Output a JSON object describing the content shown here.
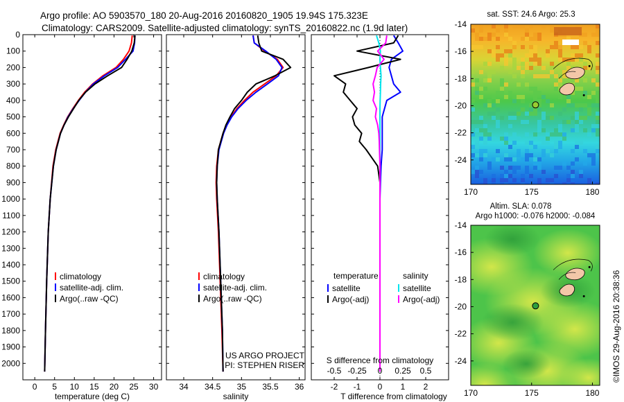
{
  "header": {
    "line1": "Argo profile: AO 5903570_180 20-Aug-2016 20160820_1905 19.94S 175.323E",
    "line2": "Climatology: CARS2009. Satellite-adjusted climatology: synTS_20160822.nc (1.9d later)"
  },
  "colors": {
    "climatology": "#ff0000",
    "satellite": "#0000ff",
    "argo": "#000000",
    "salinity_satellite": "#00e5ee",
    "salinity_argo": "#ff00ff"
  },
  "chart_data": [
    {
      "type": "line",
      "panel": "temperature",
      "xlabel": "temperature (deg C)",
      "xlim": [
        -3,
        32
      ],
      "xticks": [
        0,
        5,
        10,
        15,
        20,
        25,
        30
      ],
      "ylim": [
        2100,
        0
      ],
      "yticks": [
        0,
        100,
        200,
        300,
        400,
        500,
        600,
        700,
        800,
        900,
        1000,
        1100,
        1200,
        1300,
        1400,
        1500,
        1600,
        1700,
        1800,
        1900,
        2000
      ],
      "depth": [
        5,
        50,
        100,
        150,
        200,
        250,
        300,
        350,
        400,
        450,
        500,
        550,
        600,
        700,
        800,
        1000,
        1200,
        1500,
        1800,
        2050
      ],
      "legend": [
        "climatology",
        "satellite-adj. clim.",
        "Argo(..raw -QC)"
      ],
      "series": [
        {
          "name": "climatology",
          "color": "#ff0000",
          "values": [
            24.6,
            24.4,
            23.8,
            22.4,
            20.5,
            17.2,
            14.6,
            12.6,
            11.0,
            9.6,
            8.3,
            7.3,
            6.4,
            5.3,
            4.6,
            3.9,
            3.4,
            3.0,
            2.7,
            2.5
          ]
        },
        {
          "name": "satellite-adj. clim.",
          "color": "#0000ff",
          "values": [
            25.3,
            25.2,
            24.8,
            22.9,
            20.9,
            17.6,
            14.8,
            12.8,
            11.2,
            9.7,
            8.4,
            7.4,
            6.5,
            5.4,
            4.7,
            3.9,
            3.4,
            3.0,
            2.7,
            2.5
          ]
        },
        {
          "name": "Argo(..raw -QC)",
          "color": "#000000",
          "values": [
            25.3,
            25.1,
            24.5,
            23.3,
            21.9,
            18.4,
            15.2,
            12.8,
            11.1,
            9.8,
            8.5,
            7.4,
            6.5,
            5.4,
            4.7,
            3.9,
            3.4,
            3.0,
            2.7,
            2.5
          ]
        }
      ],
      "annotation": null
    },
    {
      "type": "line",
      "panel": "salinity",
      "xlabel": "salinity",
      "xlim": [
        33.7,
        36.1
      ],
      "xticks": [
        34,
        34.5,
        35,
        35.5,
        36
      ],
      "ylim": [
        2100,
        0
      ],
      "depth": [
        5,
        50,
        100,
        150,
        200,
        250,
        300,
        350,
        400,
        450,
        500,
        550,
        600,
        700,
        800,
        900,
        1000,
        1200,
        1500,
        1800,
        2050
      ],
      "legend": [
        "climatology",
        "satellite-adj. clim.",
        "Argo(..raw -QC)"
      ],
      "series": [
        {
          "name": "climatology",
          "color": "#ff0000",
          "values": [
            35.2,
            35.22,
            35.4,
            35.62,
            35.72,
            35.6,
            35.4,
            35.2,
            35.05,
            34.92,
            34.82,
            34.74,
            34.68,
            34.6,
            34.57,
            34.56,
            34.57,
            34.6,
            34.63,
            34.66,
            34.68
          ]
        },
        {
          "name": "satellite-adj. clim.",
          "color": "#0000ff",
          "values": [
            35.2,
            35.22,
            35.42,
            35.6,
            35.7,
            35.64,
            35.45,
            35.25,
            35.08,
            34.94,
            34.83,
            34.75,
            34.69,
            34.61,
            34.58,
            34.57,
            34.58,
            34.61,
            34.64,
            34.67,
            34.68
          ]
        },
        {
          "name": "Argo(..raw -QC)",
          "color": "#000000",
          "values": [
            35.28,
            35.3,
            35.35,
            35.72,
            35.85,
            35.58,
            35.25,
            35.1,
            35.0,
            34.88,
            34.8,
            34.73,
            34.68,
            34.6,
            34.58,
            34.57,
            34.58,
            34.61,
            34.64,
            34.67,
            34.68
          ]
        }
      ],
      "annotation": [
        "US ARGO PROJECT",
        "PI: STEPHEN RISER"
      ]
    },
    {
      "type": "line",
      "panel": "difference",
      "xlabel": "T difference from climatology",
      "xlim": [
        -3,
        3
      ],
      "xticks": [
        -2,
        -1,
        0,
        1,
        2
      ],
      "top_axis_label": "S difference from climatology",
      "top_ticks": [
        "-0.5",
        "-0.25",
        "0",
        "0.25",
        "0.5"
      ],
      "ylim": [
        2100,
        0
      ],
      "depth": [
        5,
        50,
        100,
        150,
        200,
        250,
        300,
        350,
        400,
        450,
        500,
        550,
        600,
        650,
        700,
        800,
        900,
        1000,
        1200,
        1500,
        1800,
        2050
      ],
      "legend_temperature": [
        "temperature",
        "satellite",
        "Argo(-adj)"
      ],
      "legend_salinity": [
        "salinity",
        "satellite",
        "Argo(-adj)"
      ],
      "series": [
        {
          "name": "T satellite",
          "color": "#0000ff",
          "values": [
            0.6,
            0.8,
            1.0,
            0.5,
            0.4,
            0.5,
            0.6,
            0.9,
            0.3,
            0.2,
            0.1,
            0.1,
            0.1,
            0.1,
            0.1,
            0.05,
            0.02,
            0.0,
            0.0,
            0.0,
            0.0,
            0.0
          ]
        },
        {
          "name": "T Argo(-adj)",
          "color": "#000000",
          "values": [
            0.8,
            0.6,
            -1.0,
            0.9,
            -0.5,
            -2.0,
            -1.5,
            -1.6,
            -1.3,
            -1.0,
            -1.2,
            -1.1,
            -0.8,
            -0.9,
            -0.6,
            -0.1,
            0.0,
            0.0,
            0.0,
            0.0,
            0.0,
            0.0
          ]
        },
        {
          "name": "S satellite",
          "color": "#00e5ee",
          "values": [
            -0.15,
            -0.05,
            0.02,
            0.0,
            0.02,
            0.05,
            0.03,
            0.02,
            0.01,
            0.0,
            0.0,
            0.0,
            0.0,
            0.0,
            0.0,
            0.0,
            0.0,
            0.0,
            0.0,
            0.0,
            0.0,
            0.0
          ]
        },
        {
          "name": "S Argo(-adj)",
          "color": "#ff00ff",
          "values": [
            0.3,
            0.25,
            -0.1,
            0.18,
            -0.12,
            -0.2,
            -0.3,
            -0.24,
            -0.3,
            -0.15,
            -0.2,
            -0.1,
            -0.05,
            -0.03,
            -0.02,
            0.0,
            0.0,
            0.0,
            0.0,
            0.0,
            0.0,
            0.0
          ]
        }
      ]
    },
    {
      "type": "heatmap",
      "panel": "sst-map",
      "title": "sat. SST: 24.6  Argo: 25.3",
      "xlim": [
        170,
        180.6
      ],
      "ylim": [
        -25.8,
        -14
      ],
      "xticks": [
        170,
        175,
        180
      ],
      "yticks": [
        -14,
        -16,
        -18,
        -20,
        -22,
        -24
      ],
      "float_position": {
        "lon": 175.323,
        "lat": -19.94
      }
    },
    {
      "type": "heatmap",
      "panel": "sla-map",
      "title": [
        "Altim. SLA: 0.078",
        "Argo h1000: -0.076 h2000: -0.084"
      ],
      "xlim": [
        170,
        180.6
      ],
      "ylim": [
        -25.8,
        -14
      ],
      "xticks": [
        170,
        175,
        180
      ],
      "yticks": [
        -14,
        -16,
        -18,
        -20,
        -22,
        -24
      ],
      "float_position": {
        "lon": 175.323,
        "lat": -19.94
      }
    }
  ],
  "credit": "©IMOS 29-Aug-2016 20:38:36"
}
